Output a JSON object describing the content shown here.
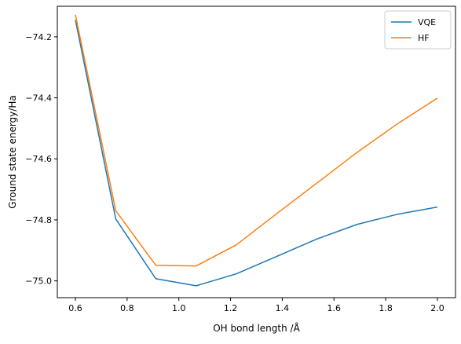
{
  "chart_data": {
    "type": "line",
    "title": "",
    "xlabel": "OH bond length /Å",
    "ylabel": "Ground state energy/Ha",
    "xlim": [
      0.53,
      2.07
    ],
    "ylim": [
      -75.055,
      -74.1
    ],
    "xticks": [
      0.6,
      0.8,
      1.0,
      1.2,
      1.4,
      1.6,
      1.8,
      2.0
    ],
    "xtick_labels": [
      "0.6",
      "0.8",
      "1.0",
      "1.2",
      "1.4",
      "1.6",
      "1.8",
      "2.0"
    ],
    "yticks": [
      -75.0,
      -74.8,
      -74.6,
      -74.4,
      -74.2
    ],
    "ytick_labels": [
      "−75.0",
      "−74.8",
      "−74.6",
      "−74.4",
      "−74.2"
    ],
    "grid": false,
    "legend_position": "top-right",
    "series": [
      {
        "name": "VQE",
        "color": "#1f77b4",
        "x": [
          0.6,
          0.756,
          0.911,
          1.067,
          1.222,
          1.378,
          1.533,
          1.689,
          1.844,
          2.0
        ],
        "y": [
          -74.145,
          -74.797,
          -74.993,
          -75.016,
          -74.977,
          -74.92,
          -74.863,
          -74.815,
          -74.782,
          -74.758
        ]
      },
      {
        "name": "HF",
        "color": "#ff7f0e",
        "x": [
          0.6,
          0.756,
          0.911,
          1.067,
          1.222,
          1.378,
          1.533,
          1.689,
          1.844,
          2.0
        ],
        "y": [
          -74.128,
          -74.77,
          -74.949,
          -74.951,
          -74.882,
          -74.78,
          -74.68,
          -74.579,
          -74.486,
          -74.401
        ]
      }
    ]
  }
}
